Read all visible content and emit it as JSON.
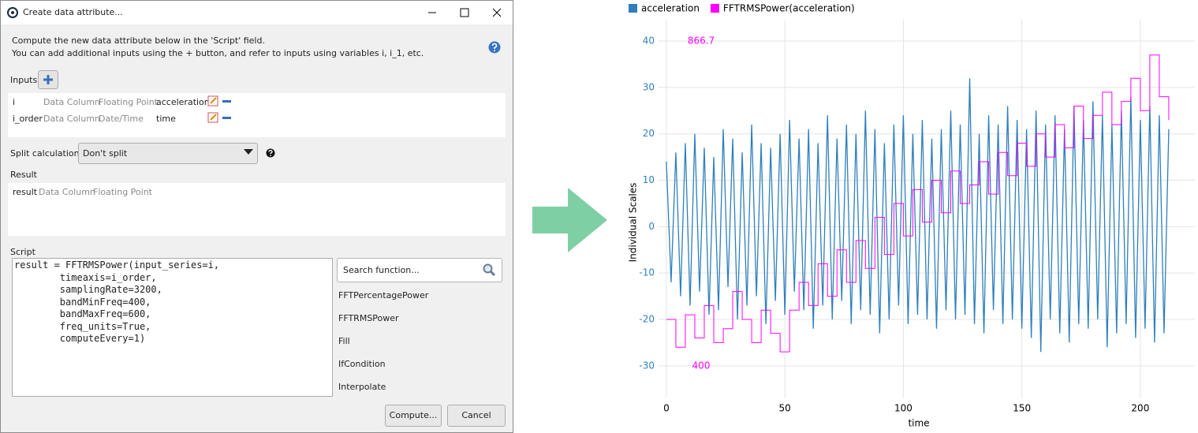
{
  "dialog": {
    "title": "Create data attribute...",
    "description": [
      "Compute the new data attribute below in the 'Script' field.",
      "You can add additional inputs using the + button, and refer to inputs using variables i, i_1, etc."
    ],
    "inputs_label": "Inputs",
    "inputs": [
      [
        "i",
        "Data Column",
        "Floating Point",
        "acceleration"
      ],
      [
        "i_order",
        "Data Column",
        "Date/Time",
        "time"
      ]
    ],
    "split_label": "Split calculation:",
    "split_value": "Don't split",
    "result_label": "Result",
    "result": [
      "result",
      "Data Column",
      "Floating Point"
    ],
    "script_label": "Script",
    "script": [
      "result = FFTRMSPower(input_series=i,",
      "        timeaxis=i_order,",
      "        samplingRate=3200,",
      "        bandMinFreq=400,",
      "        bandMaxFreq=600,",
      "        freq_units=True,",
      "        computeEvery=1)"
    ],
    "search_placeholder": "Search function...",
    "functions": [
      "FFTPercentagePower",
      "FFTRMSPower",
      "Fill",
      "IfCondition",
      "Interpolate"
    ],
    "buttons": [
      "Compute...",
      "Cancel"
    ]
  },
  "chart_data": {
    "type": "line",
    "x_label": "time",
    "y_label": "Individual Scales",
    "legend": "top-left",
    "grid": true,
    "xlim": [
      -3.3,
      223
    ],
    "ylim": [
      -37,
      44.6
    ],
    "y2lim": [
      353.3,
      897.4
    ],
    "xticks": [
      0,
      50,
      100,
      150,
      200
    ],
    "yticks": [
      -30,
      -20,
      -10,
      0,
      10,
      20,
      30,
      40
    ],
    "y2ticks": [
      400,
      866.7
    ],
    "series": [
      {
        "name": "acceleration",
        "color": "#2f7fbc",
        "x": [
          0,
          2,
          4,
          6,
          8,
          10,
          12,
          14,
          16,
          18,
          20,
          22,
          24,
          26,
          28,
          30,
          32,
          34,
          36,
          38,
          40,
          42,
          44,
          46,
          48,
          50,
          52,
          54,
          56,
          58,
          60,
          62,
          64,
          66,
          68,
          70,
          72,
          74,
          76,
          78,
          80,
          82,
          84,
          86,
          88,
          90,
          92,
          94,
          96,
          98,
          100,
          102,
          104,
          106,
          108,
          110,
          112,
          114,
          116,
          118,
          120,
          122,
          124,
          126,
          128,
          130,
          132,
          134,
          136,
          138,
          140,
          142,
          144,
          146,
          148,
          150,
          152,
          154,
          156,
          158,
          160,
          162,
          164,
          166,
          168,
          170,
          172,
          174,
          176,
          178,
          180,
          182,
          184,
          186,
          188,
          190,
          192,
          194,
          196,
          198,
          200,
          202,
          204,
          206,
          208,
          210,
          212
        ],
        "values": [
          14,
          -12,
          16,
          -15,
          18,
          -17,
          20,
          -14,
          17,
          -19,
          15,
          -18,
          21,
          -13,
          19,
          -20,
          16,
          -17,
          22,
          -15,
          18,
          -21,
          17,
          -16,
          20,
          -19,
          23,
          -14,
          19,
          -18,
          21,
          -22,
          18,
          -17,
          24,
          -20,
          19,
          -16,
          22,
          -21,
          20,
          -18,
          25,
          -19,
          21,
          -23,
          18,
          -20,
          22,
          -17,
          24,
          -21,
          20,
          -19,
          23,
          -20,
          19,
          -22,
          21,
          -18,
          25,
          -20,
          22,
          -19,
          32,
          -21,
          20,
          -23,
          24,
          -18,
          22,
          -21,
          26,
          -20,
          23,
          -22,
          21,
          -24,
          25,
          -27,
          22,
          -20,
          24,
          -23,
          21,
          -25,
          26,
          -21,
          23,
          -22,
          27,
          -20,
          24,
          -26,
          22,
          -23,
          25,
          -21,
          28,
          -24,
          23,
          -22,
          26,
          -25,
          24,
          -23,
          21
        ]
      },
      {
        "name": "FFTRMSPower(acceleration)",
        "color": "#ff00ff",
        "axis": "y2",
        "drawstyle": "steps-post",
        "x": [
          0,
          4,
          8,
          12,
          16,
          20,
          24,
          28,
          32,
          36,
          40,
          44,
          48,
          52,
          56,
          60,
          64,
          68,
          72,
          76,
          80,
          84,
          88,
          92,
          96,
          100,
          104,
          108,
          112,
          116,
          120,
          124,
          128,
          132,
          136,
          140,
          144,
          148,
          152,
          156,
          160,
          164,
          168,
          172,
          176,
          180,
          184,
          188,
          192,
          196,
          200,
          204,
          208,
          212
        ],
        "values": [
          466.7,
          426.7,
          473.3,
          440,
          486.7,
          433.3,
          453.3,
          506.7,
          466.7,
          433.3,
          480,
          446.7,
          420,
          480,
          520,
          486.7,
          546.7,
          500,
          566.7,
          520,
          580,
          540,
          613.3,
          560,
          633.3,
          586.7,
          653.3,
          606.7,
          666.7,
          620,
          680,
          633.3,
          660,
          693.3,
          646.7,
          706.7,
          673.3,
          720,
          686.7,
          733.3,
          700,
          746.7,
          713.3,
          773.3,
          726.7,
          760,
          793.3,
          746.7,
          780,
          813.3,
          766.7,
          846.7,
          786.7,
          753.3
        ]
      }
    ]
  }
}
